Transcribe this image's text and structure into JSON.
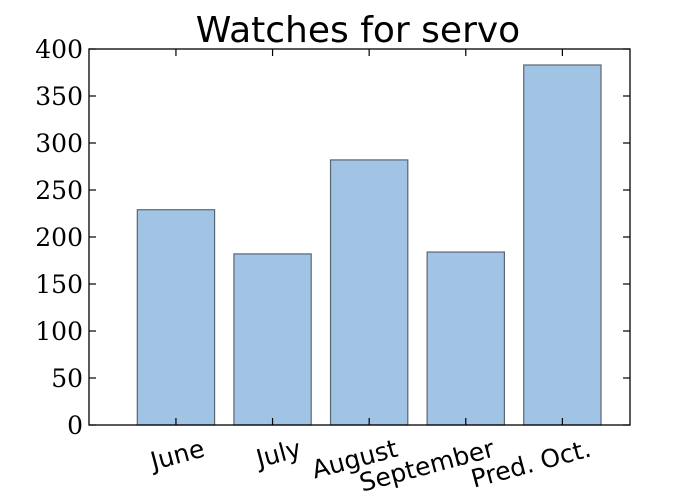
{
  "chart_data": {
    "type": "bar",
    "title": "Watches for servo",
    "xlabel": "",
    "ylabel": "",
    "categories": [
      "June",
      "July",
      "August",
      "September",
      "Pred. Oct."
    ],
    "values": [
      229,
      182,
      282,
      184,
      383
    ],
    "ylim": [
      0,
      400
    ],
    "yticks": [
      0,
      50,
      100,
      150,
      200,
      250,
      300,
      350,
      400
    ],
    "ytick_labels": [
      "0",
      "50",
      "100",
      "150",
      "200",
      "250",
      "300",
      "350",
      "400"
    ],
    "grid": false,
    "legend": "none",
    "colors": {
      "bar_fill": "#a1c3e4",
      "bar_edge": "#5a6673",
      "axes": "#000000",
      "background": "#ffffff"
    }
  }
}
